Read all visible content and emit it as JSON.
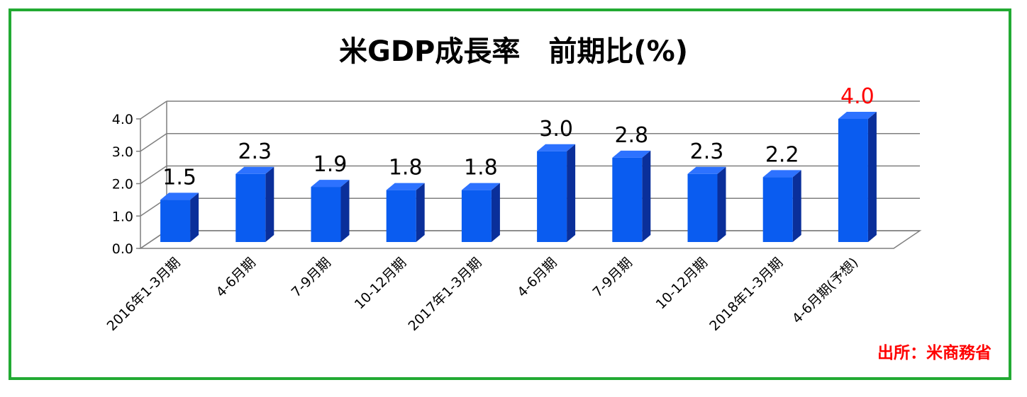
{
  "chart_data": {
    "type": "bar",
    "title": "米GDP成長率　前期比(%)",
    "categories": [
      "2016年1-3月期",
      "4-6月期",
      "7-9月期",
      "10-12月期",
      "2017年1-3月期",
      "4-6月期",
      "7-9月期",
      "10-12月期",
      "2018年1-3月期",
      "4-6月期(予想)"
    ],
    "values": [
      1.5,
      2.3,
      1.9,
      1.8,
      1.8,
      3.0,
      2.8,
      2.3,
      2.2,
      4.0
    ],
    "value_labels": [
      "1.5",
      "2.3",
      "1.9",
      "1.8",
      "1.8",
      "3.0",
      "2.8",
      "2.3",
      "2.2",
      "4.0"
    ],
    "highlight_index": 9,
    "y_ticks": [
      "0.0",
      "1.0",
      "2.0",
      "3.0",
      "4.0"
    ],
    "ylim": [
      0,
      4
    ],
    "xlabel": "",
    "ylabel": "",
    "grid": true,
    "source": "出所：米商務省",
    "colors": {
      "bar_front": "#0a5cf0",
      "bar_side": "#0a2f9a",
      "bar_top": "#2d72ff",
      "highlight_label": "#ff0000",
      "frame": "#22aa33",
      "grid": "#7f7f7f"
    }
  }
}
